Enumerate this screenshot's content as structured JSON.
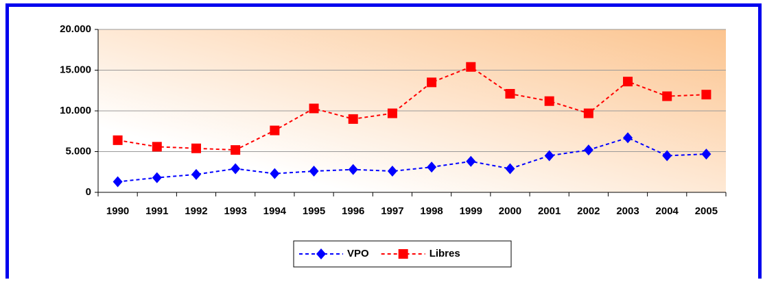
{
  "chart_data": {
    "type": "line",
    "categories": [
      "1990",
      "1991",
      "1992",
      "1993",
      "1994",
      "1995",
      "1996",
      "1997",
      "1998",
      "1999",
      "2000",
      "2001",
      "2002",
      "2003",
      "2004",
      "2005"
    ],
    "series": [
      {
        "name": "VPO",
        "color": "#0000ff",
        "marker": "diamond",
        "values": [
          1300,
          1800,
          2200,
          2900,
          2300,
          2600,
          2800,
          2600,
          3100,
          3800,
          2900,
          4500,
          5200,
          6700,
          4500,
          4700
        ]
      },
      {
        "name": "Libres",
        "color": "#ff0000",
        "marker": "square",
        "values": [
          6400,
          5600,
          5400,
          5200,
          7600,
          10300,
          9000,
          9700,
          13500,
          15400,
          12100,
          11200,
          9700,
          13600,
          11800,
          12000
        ]
      }
    ],
    "ylim": [
      0,
      20000
    ],
    "yticks": [
      0,
      {
        "value": 5000,
        "label": "5.000"
      },
      {
        "value": 10000,
        "label": "10.000"
      },
      {
        "value": 15000,
        "label": "15.000"
      },
      {
        "value": 20000,
        "label": "20.000"
      }
    ],
    "grid": true,
    "legend": "bottom"
  }
}
